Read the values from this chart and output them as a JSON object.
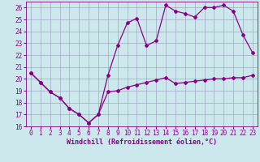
{
  "title": "",
  "xlabel": "Windchill (Refroidissement éolien,°C)",
  "bg_color": "#cce8ec",
  "grid_color": "#9999bb",
  "line_color": "#880088",
  "ylim": [
    16,
    26.5
  ],
  "xlim": [
    -0.5,
    23.5
  ],
  "yticks": [
    16,
    17,
    18,
    19,
    20,
    21,
    22,
    23,
    24,
    25,
    26
  ],
  "xticks": [
    0,
    1,
    2,
    3,
    4,
    5,
    6,
    7,
    8,
    9,
    10,
    11,
    12,
    13,
    14,
    15,
    16,
    17,
    18,
    19,
    20,
    21,
    22,
    23
  ],
  "line1_x": [
    0,
    1,
    2,
    3,
    4,
    5,
    6,
    7,
    8,
    9,
    10,
    11,
    12,
    13,
    14,
    15,
    16,
    17,
    18,
    19,
    20,
    21,
    22,
    23
  ],
  "line1_y": [
    20.5,
    19.7,
    18.9,
    18.4,
    17.5,
    17.0,
    16.3,
    17.0,
    18.9,
    19.0,
    19.3,
    19.5,
    19.7,
    19.9,
    20.1,
    19.6,
    19.7,
    19.8,
    19.9,
    20.0,
    20.0,
    20.1,
    20.1,
    20.3
  ],
  "line2_x": [
    0,
    1,
    2,
    3,
    4,
    5,
    6,
    7,
    8,
    9,
    10,
    11,
    12,
    13,
    14,
    15,
    16,
    17,
    18,
    19,
    20,
    21,
    22,
    23
  ],
  "line2_y": [
    20.5,
    19.7,
    18.9,
    18.4,
    17.5,
    17.0,
    16.3,
    17.0,
    20.3,
    22.8,
    24.7,
    25.1,
    22.8,
    23.2,
    26.2,
    25.7,
    25.5,
    25.2,
    26.0,
    26.0,
    26.2,
    25.7,
    23.7,
    22.2
  ],
  "marker": "D",
  "markersize": 2.0,
  "linewidth": 0.9,
  "tick_fontsize": 5.5,
  "xlabel_fontsize": 6.0
}
